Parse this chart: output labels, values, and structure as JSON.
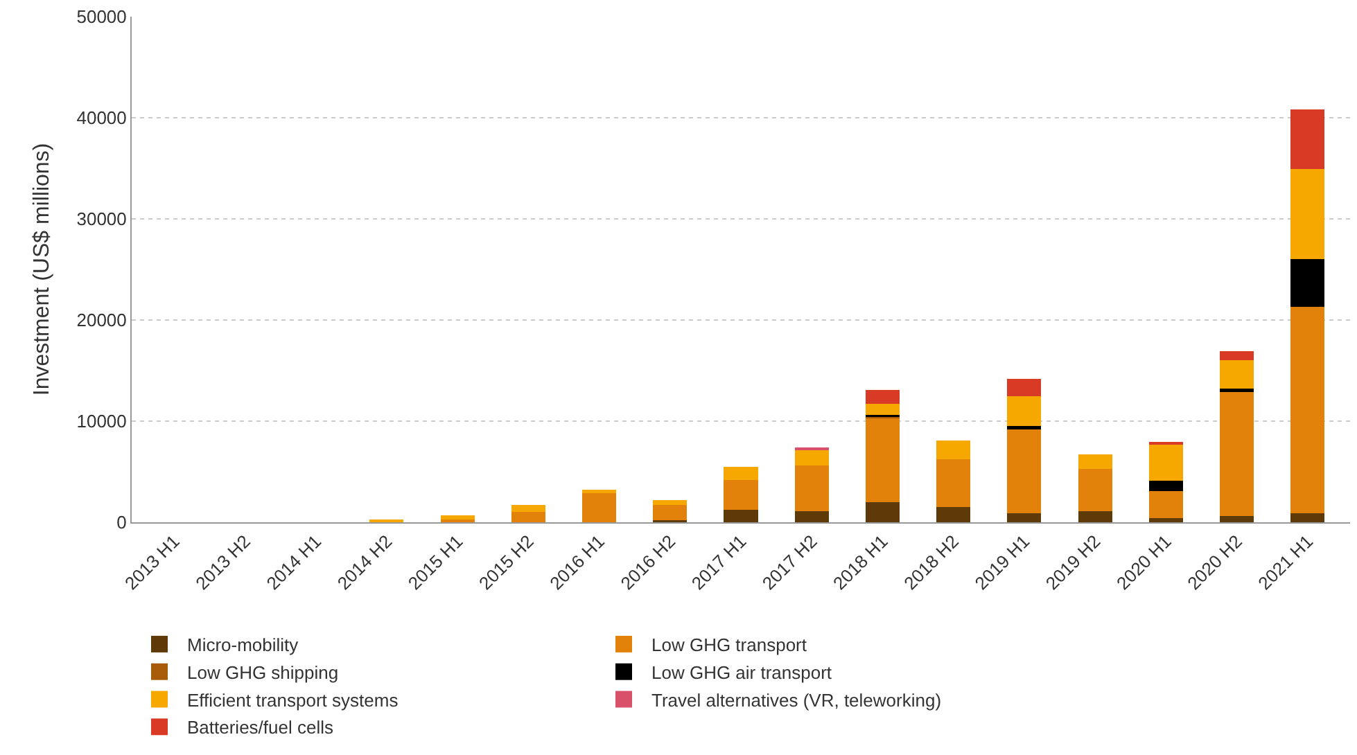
{
  "chart_data": {
    "type": "bar",
    "stacked": true,
    "ylabel": "Investment (US$ millions)",
    "categories": [
      "2013 H1",
      "2013 H2",
      "2014 H1",
      "2014 H2",
      "2015 H1",
      "2015 H2",
      "2016 H1",
      "2016 H2",
      "2017 H1",
      "2017 H2",
      "2018 H1",
      "2018 H2",
      "2019 H1",
      "2019 H2",
      "2020 H1",
      "2020 H2",
      "2021 H1"
    ],
    "series": [
      {
        "name": "Micro-mobility",
        "color": "#5e3a09",
        "values": [
          null,
          null,
          null,
          null,
          null,
          null,
          null,
          200,
          1200,
          1100,
          2000,
          1500,
          900,
          1100,
          400,
          600,
          900
        ]
      },
      {
        "name": "Low GHG transport",
        "color": "#e3820b",
        "values": [
          null,
          null,
          null,
          null,
          300,
          1000,
          2900,
          1500,
          3000,
          4500,
          8300,
          4700,
          8400,
          4200,
          2700,
          12400,
          20400
        ]
      },
      {
        "name": "Low GHG shipping",
        "color": "#a85c0a",
        "values": [
          null,
          null,
          null,
          null,
          null,
          null,
          null,
          null,
          null,
          null,
          200,
          null,
          null,
          null,
          null,
          null,
          null
        ]
      },
      {
        "name": "Low GHG air transport",
        "color": "#000000",
        "values": [
          null,
          null,
          null,
          null,
          null,
          null,
          null,
          null,
          null,
          null,
          100,
          null,
          200,
          null,
          1000,
          200,
          4700
        ]
      },
      {
        "name": "Efficient transport systems",
        "color": "#f6a800",
        "values": [
          null,
          null,
          null,
          200,
          400,
          700,
          300,
          500,
          1300,
          1500,
          1100,
          1900,
          3000,
          1400,
          3600,
          2800,
          8900
        ]
      },
      {
        "name": "Travel alternatives (VR, teleworking)",
        "color": "#d9506b",
        "values": [
          null,
          null,
          null,
          null,
          null,
          null,
          null,
          null,
          null,
          300,
          null,
          null,
          null,
          null,
          null,
          null,
          null
        ]
      },
      {
        "name": "Batteries/fuel cells",
        "color": "#d93a26",
        "values": [
          null,
          null,
          null,
          null,
          null,
          null,
          null,
          null,
          null,
          null,
          1400,
          null,
          1700,
          null,
          200,
          900,
          5900
        ]
      }
    ],
    "ylim": [
      0,
      50000
    ],
    "yticks": [
      0,
      10000,
      20000,
      30000,
      40000,
      50000
    ],
    "grid": "y",
    "legend": "bottom"
  }
}
